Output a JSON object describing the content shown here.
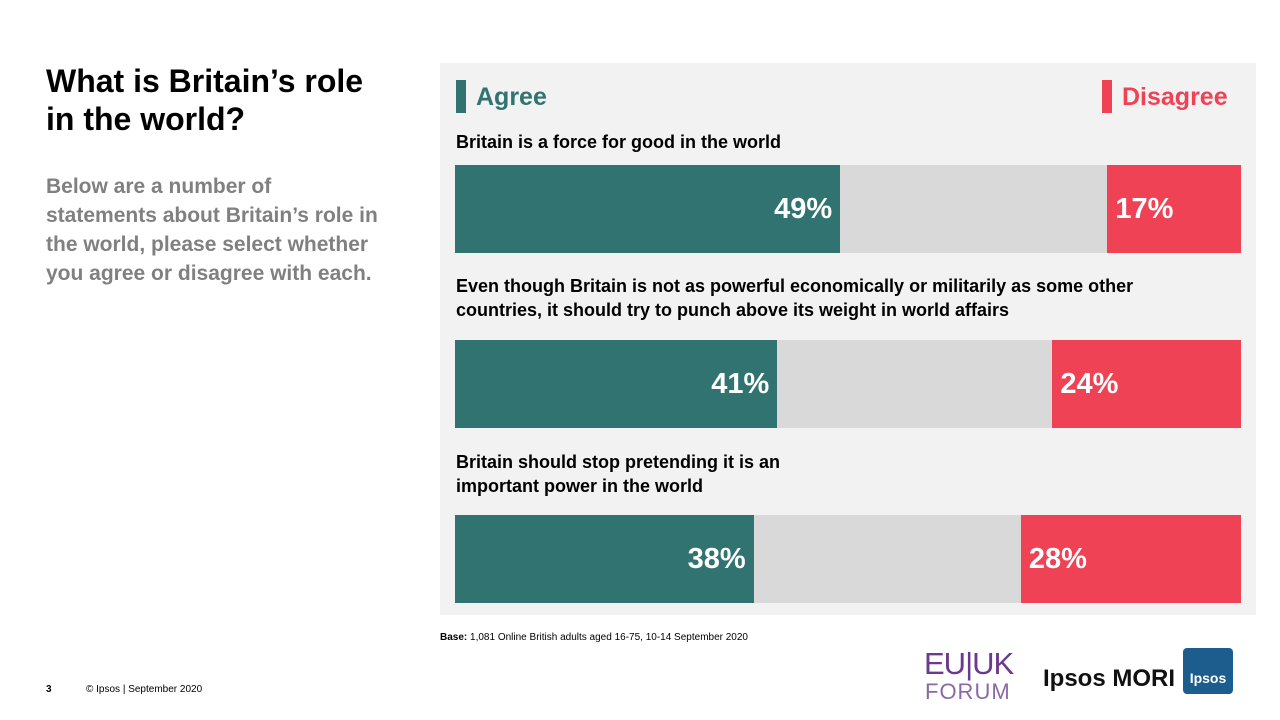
{
  "slide": {
    "title": "What is Britain’s role in the world?",
    "description": "Below are a number of statements about Britain’s role in the world, please select whether you agree or disagree with each.",
    "base_label": "Base:",
    "base_text": "1,081 Online British adults aged 16-75, 10-14 September 2020",
    "page_number": "3",
    "copyright": "© Ipsos | September 2020",
    "logo_euuk": "EU|UK",
    "logo_forum": "FORUM",
    "logo_ipsos_mori": "Ipsos MORI",
    "logo_ipsos": "Ipsos"
  },
  "chart_data": {
    "type": "stacked-bar-horizontal",
    "categories": [
      "Britain is a force for good in the world",
      "Even though Britain is not as powerful economically or militarily as some other countries, it should try to punch above its weight in world affairs",
      "Britain should stop pretending it is an important power in the world"
    ],
    "series": [
      {
        "name": "Agree",
        "color": "#317370",
        "values": [
          49,
          41,
          38
        ],
        "value_labels": [
          "49%",
          "41%",
          "38%"
        ]
      },
      {
        "name": "Disagree",
        "color": "#f04255",
        "values": [
          17,
          24,
          28
        ],
        "value_labels": [
          "17%",
          "24%",
          "28%"
        ]
      }
    ],
    "xlim": [
      0,
      100
    ]
  }
}
